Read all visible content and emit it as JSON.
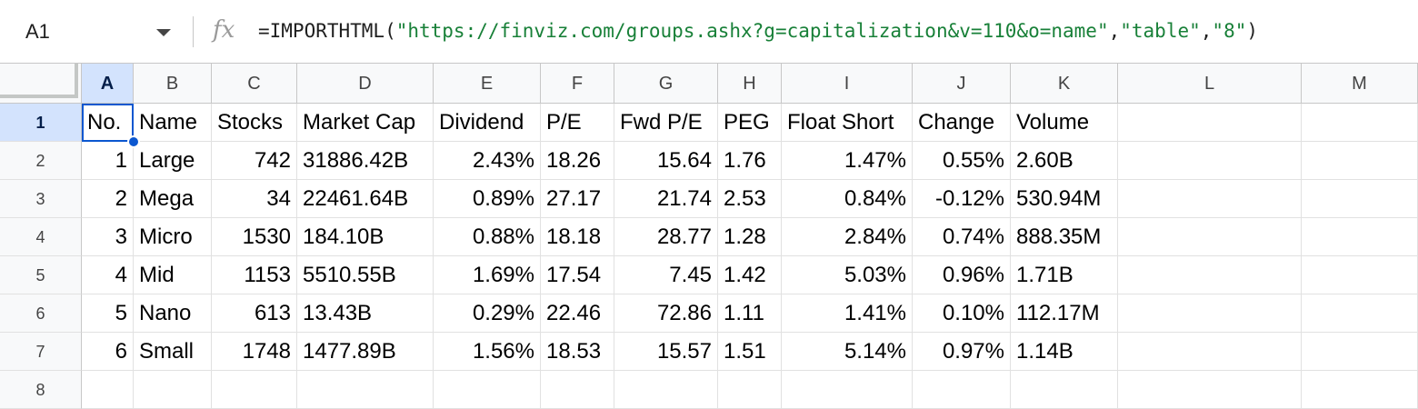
{
  "formula_bar": {
    "name_box": "A1",
    "fx_label": "fx",
    "formula_parts": [
      {
        "t": "fn",
        "v": "=IMPORTHTML("
      },
      {
        "t": "s",
        "v": "\"https://finviz.com/groups.ashx?g=capitalization&v=110&o=name\""
      },
      {
        "t": "c",
        "v": ","
      },
      {
        "t": "s",
        "v": "\"table\""
      },
      {
        "t": "c",
        "v": ","
      },
      {
        "t": "s",
        "v": "\"8\""
      },
      {
        "t": "p",
        "v": ")"
      }
    ]
  },
  "columns": [
    "A",
    "B",
    "C",
    "D",
    "E",
    "F",
    "G",
    "H",
    "I",
    "J",
    "K",
    "L",
    "M"
  ],
  "rows": [
    "1",
    "2",
    "3",
    "4",
    "5",
    "6",
    "7",
    "8"
  ],
  "selected_cell": "A1",
  "table": {
    "headers": [
      "No.",
      "Name",
      "Stocks",
      "Market Cap",
      "Dividend",
      "P/E",
      "Fwd P/E",
      "PEG",
      "Float Short",
      "Change",
      "Volume"
    ],
    "data": [
      [
        "1",
        "Large",
        "742",
        "31886.42B",
        "2.43%",
        "18.26",
        "15.64",
        "1.76",
        "1.47%",
        "0.55%",
        "2.60B"
      ],
      [
        "2",
        "Mega",
        "34",
        "22461.64B",
        "0.89%",
        "27.17",
        "21.74",
        "2.53",
        "0.84%",
        "-0.12%",
        "530.94M"
      ],
      [
        "3",
        "Micro",
        "1530",
        "184.10B",
        "0.88%",
        "18.18",
        "28.77",
        "1.28",
        "2.84%",
        "0.74%",
        "888.35M"
      ],
      [
        "4",
        "Mid",
        "1153",
        "5510.55B",
        "1.69%",
        "17.54",
        "7.45",
        "1.42",
        "5.03%",
        "0.96%",
        "1.71B"
      ],
      [
        "5",
        "Nano",
        "613",
        "13.43B",
        "0.29%",
        "22.46",
        "72.86",
        "1.11",
        "1.41%",
        "0.10%",
        "112.17M"
      ],
      [
        "6",
        "Small",
        "1748",
        "1477.89B",
        "1.56%",
        "18.53",
        "15.57",
        "1.51",
        "5.14%",
        "0.97%",
        "1.14B"
      ]
    ]
  },
  "colors": {
    "selection": "#0b57d0",
    "header_selected": "#d3e3fd",
    "string": "#188038"
  }
}
